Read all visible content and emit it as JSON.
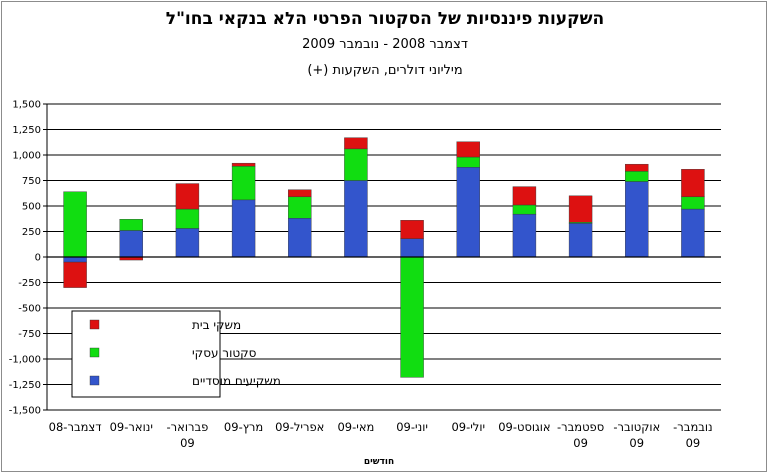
{
  "chart_data": {
    "type": "bar",
    "stacked": true,
    "title": "השקעות פיננסיות של הסקטור הפרטי הלא בנקאי בחו\"ל",
    "subtitle": "דצמבר 2008 - נובמבר 2009",
    "units": "מיליוני דולרים, השקעות (+)",
    "xlabel": "חודשים",
    "ylabel": "",
    "ylim": [
      -1500,
      1500
    ],
    "ytick_step": 250,
    "yticks": [
      "-1,500",
      "-1,250",
      "-1,000",
      "-750",
      "-500",
      "-250",
      "0",
      "250",
      "500",
      "750",
      "1,000",
      "1,250",
      "1,500"
    ],
    "grid": true,
    "legend_position": "bottom-left",
    "categories": [
      [
        "דצמבר-08"
      ],
      [
        "ינואר-09"
      ],
      [
        "פברואר-",
        "09"
      ],
      [
        "מרץ-09"
      ],
      [
        "אפריל-09"
      ],
      [
        "מאי-09"
      ],
      [
        "יוני-09"
      ],
      [
        "יולי-09"
      ],
      [
        "אוגוסט-09"
      ],
      [
        "ספטמבר-",
        "09"
      ],
      [
        "אוקטובר-",
        "09"
      ],
      [
        "נובמבר-",
        "09"
      ]
    ],
    "series": [
      {
        "name": "משקיעים מוסדיים",
        "color": "#3355cc",
        "values": [
          -50,
          260,
          280,
          560,
          380,
          750,
          180,
          880,
          420,
          330,
          740,
          470
        ]
      },
      {
        "name": "סקטור עסקי",
        "color": "#11dd11",
        "values": [
          640,
          110,
          190,
          330,
          210,
          310,
          -1180,
          100,
          90,
          10,
          100,
          120
        ]
      },
      {
        "name": "משקי בית",
        "color": "#dd1111",
        "values": [
          -250,
          -30,
          250,
          30,
          70,
          110,
          180,
          150,
          180,
          260,
          70,
          270
        ]
      }
    ]
  }
}
